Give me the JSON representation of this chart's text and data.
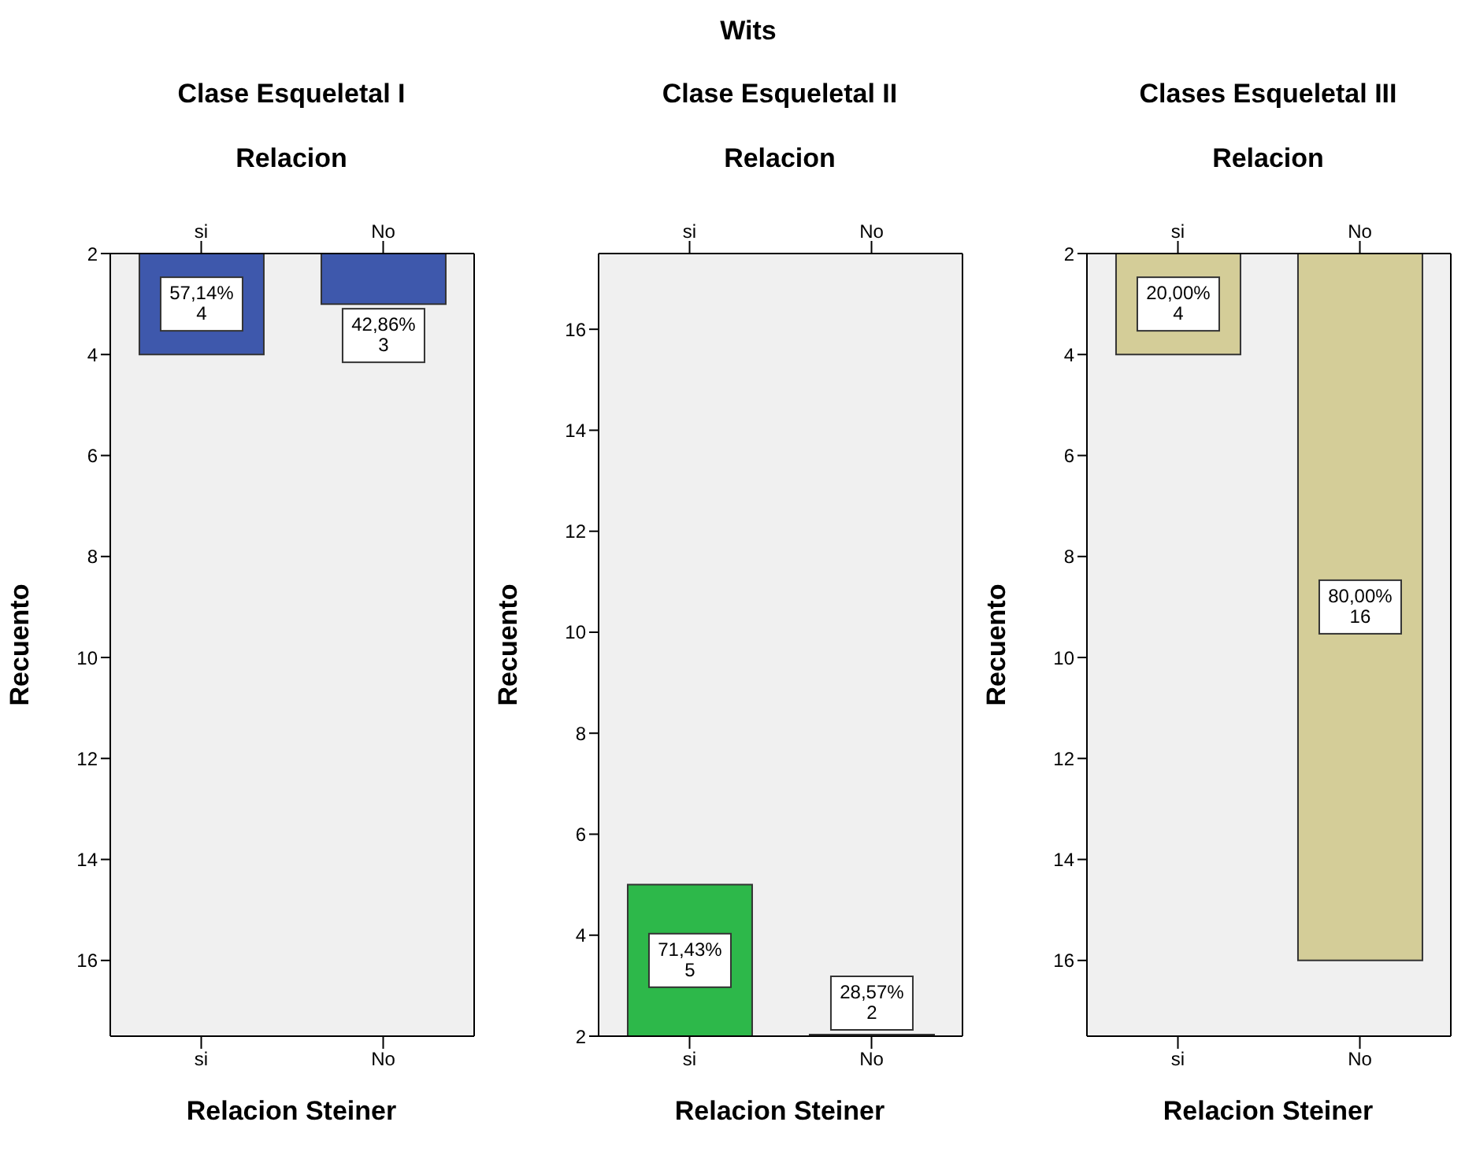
{
  "chart_data": [
    {
      "type": "bar",
      "subtitle": "Clase Esqueletal I",
      "x2label": "Relacion",
      "xlabel": "Relacion Steiner",
      "ylabel": "Recuento",
      "categories": [
        "si",
        "No"
      ],
      "values": [
        4,
        3
      ],
      "color": "#3e58ac",
      "value_labels": [
        "57,14%\n4",
        "42,86%\n3"
      ],
      "ylim": [
        17.5,
        2
      ],
      "yticks": [
        2,
        4,
        6,
        8,
        10,
        12,
        14,
        16
      ]
    },
    {
      "type": "bar",
      "title": "Wits",
      "subtitle": "Clase Esqueletal II",
      "x2label": "Relacion",
      "xlabel": "Relacion Steiner",
      "ylabel": "Recuento",
      "categories": [
        "si",
        "No"
      ],
      "values": [
        5,
        2
      ],
      "color": "#2db84a",
      "value_labels": [
        "71,43%\n5",
        "28,57%\n2"
      ],
      "ylim": [
        2,
        17.5
      ],
      "yticks": [
        2,
        4,
        6,
        8,
        10,
        12,
        14,
        16
      ]
    },
    {
      "type": "bar",
      "subtitle": "Clases Esqueletal III",
      "x2label": "Relacion",
      "xlabel": "Relacion Steiner",
      "ylabel": "Recuento",
      "categories": [
        "si",
        "No"
      ],
      "values": [
        4,
        16
      ],
      "color": "#d4cd98",
      "value_labels": [
        "20,00%\n4",
        "80,00%\n16"
      ],
      "ylim": [
        17.5,
        2
      ],
      "yticks": [
        2,
        4,
        6,
        8,
        10,
        12,
        14,
        16
      ]
    }
  ]
}
